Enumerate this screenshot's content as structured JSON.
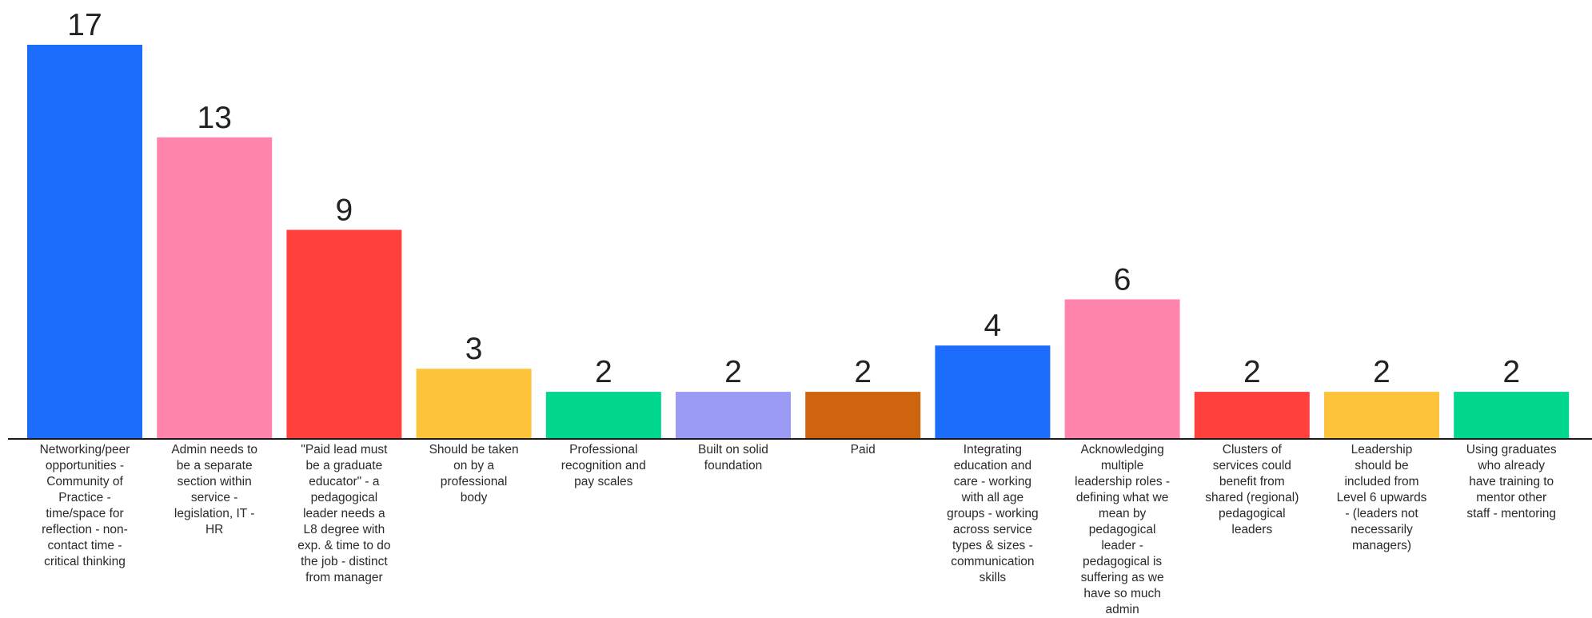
{
  "chart_data": {
    "type": "bar",
    "title": "",
    "xlabel": "",
    "ylabel": "",
    "ylim": [
      0,
      17
    ],
    "grid": false,
    "legend": "none",
    "categories": [
      "Networking/peer opportunities - Community of Practice - time/space for reflection - non-contact time - critical thinking",
      "Admin needs to be a separate section within service - legislation, IT - HR",
      "\"Paid lead must be a graduate educator\" - a pedagogical leader needs a L8 degree with exp. & time to do the job - distinct from manager",
      "Should be taken on by a professional body",
      "Professional recognition and pay scales",
      "Built on solid foundation",
      "Paid",
      "Integrating education and care - working with all age groups - working across service types & sizes - communication skills",
      "Acknowledging multiple leadership roles - defining what we mean by pedagogical leader - pedagogical is suffering as we have so much admin",
      "Clusters of services could benefit from shared (regional) pedagogical leaders",
      "Leadership should be included from Level 6 upwards - (leaders not necessarily managers)",
      "Using graduates who already have training to mentor other staff - mentoring"
    ],
    "values": [
      17,
      13,
      9,
      3,
      2,
      2,
      2,
      4,
      6,
      2,
      2,
      2
    ],
    "colors": [
      "#1c6dfc",
      "#ff85ad",
      "#ff403c",
      "#fdc33a",
      "#00d68c",
      "#9b9bf5",
      "#cf640f",
      "#1c6dfc",
      "#ff85ad",
      "#ff403c",
      "#fdc33a",
      "#00d68c"
    ],
    "baseline_color": "#1a1a1a"
  }
}
